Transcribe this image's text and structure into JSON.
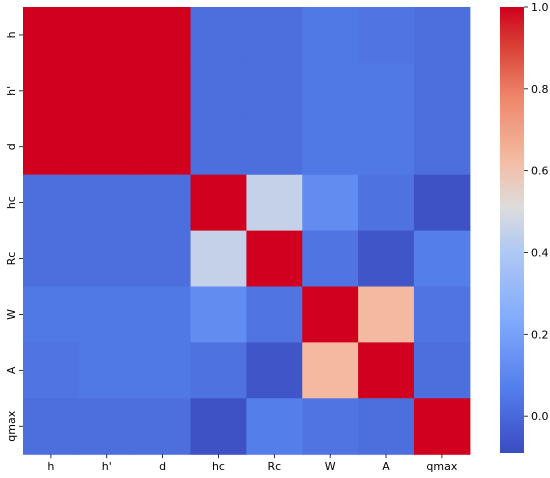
{
  "chart_data": {
    "type": "heatmap",
    "rows": [
      "h",
      "h'",
      "d",
      "hc",
      "Rc",
      "W",
      "A",
      "qmax"
    ],
    "columns": [
      "h",
      "h'",
      "d",
      "hc",
      "Rc",
      "W",
      "A",
      "qmax"
    ],
    "values": [
      [
        1.0,
        1.0,
        1.0,
        0.02,
        0.02,
        0.05,
        0.04,
        0.02
      ],
      [
        1.0,
        1.0,
        1.0,
        0.02,
        0.02,
        0.05,
        0.05,
        0.02
      ],
      [
        1.0,
        1.0,
        1.0,
        0.02,
        0.02,
        0.05,
        0.05,
        0.02
      ],
      [
        0.02,
        0.02,
        0.02,
        1.0,
        0.45,
        0.12,
        0.03,
        -0.07
      ],
      [
        0.02,
        0.02,
        0.02,
        0.45,
        1.0,
        0.04,
        -0.06,
        0.07
      ],
      [
        0.05,
        0.05,
        0.05,
        0.12,
        0.04,
        1.0,
        0.63,
        0.04
      ],
      [
        0.04,
        0.05,
        0.05,
        0.03,
        -0.06,
        0.63,
        1.0,
        0.02
      ],
      [
        0.02,
        0.02,
        0.02,
        -0.07,
        0.07,
        0.04,
        0.02,
        1.0
      ]
    ],
    "colorbar": {
      "min": -0.09,
      "max": 1.0,
      "ticks": [
        0.0,
        0.2,
        0.4,
        0.6,
        0.8,
        1.0
      ],
      "tick_labels": [
        "0.0",
        "0.2",
        "0.4",
        "0.6",
        "0.8",
        "1.0"
      ]
    },
    "colormap": "coolwarm",
    "title": "",
    "xlabel": "",
    "ylabel": ""
  }
}
